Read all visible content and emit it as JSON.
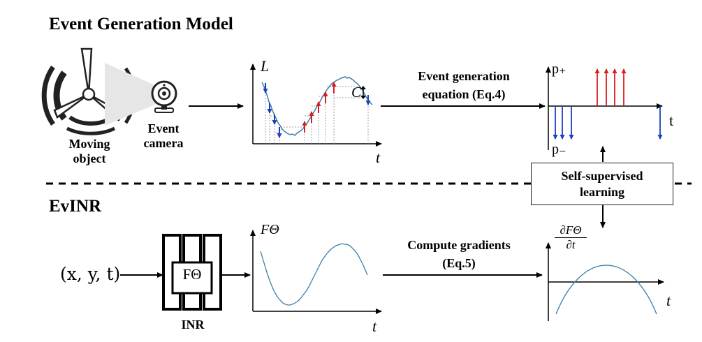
{
  "section1": {
    "title": "Event Generation Model",
    "moving_object": "Moving\nobject",
    "event_camera": "Event\ncamera",
    "graph_ylabel": "L",
    "graph_xlabel": "t",
    "threshold_label": "C",
    "arrow_caption": "Event generation\nequation (Eq.4)",
    "polarity_pos": "p₊",
    "polarity_neg": "p₋",
    "events_xlabel": "t"
  },
  "feedback": {
    "label": "Self-supervised\nlearning"
  },
  "section2": {
    "title": "EvINR",
    "input": "(x, y, t)",
    "network_label": "FΘ",
    "network_caption": "INR",
    "graph_ylabel": "FΘ",
    "graph_xlabel": "t",
    "arrow_caption": "Compute gradients\n(Eq.5)",
    "derivative_numerator": "∂FΘ",
    "derivative_denominator": "∂t",
    "derivative_xlabel": "t"
  },
  "colors": {
    "positive_event": "#d62020",
    "negative_event": "#1f3fbf",
    "curve": "#3d7fa6"
  }
}
